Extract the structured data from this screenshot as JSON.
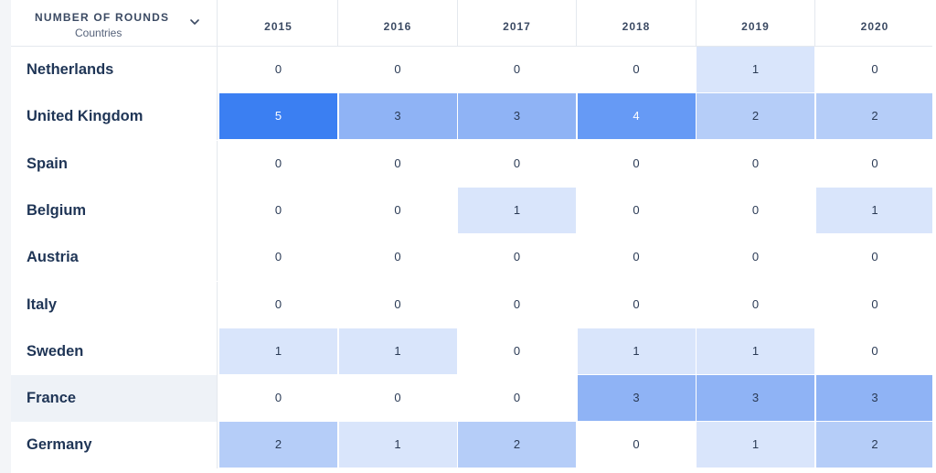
{
  "header": {
    "metric_label": "NUMBER OF ROUNDS",
    "dimension_label": "Countries",
    "dropdown_icon": "chevron-down-icon"
  },
  "colors": {
    "level_0": "#ffffff",
    "level_1": "#d9e5fb",
    "level_2": "#b5cdf8",
    "level_3": "#8fb3f5",
    "level_4": "#669af5",
    "level_5": "#3b7ff2",
    "highlight_row": "#eef2f7"
  },
  "chart_data": {
    "type": "heatmap",
    "title": "NUMBER OF ROUNDS",
    "xlabel": "",
    "ylabel": "Countries",
    "columns": [
      "2015",
      "2016",
      "2017",
      "2018",
      "2019",
      "2020"
    ],
    "rows": [
      {
        "name": "Netherlands",
        "values": [
          0,
          0,
          0,
          0,
          1,
          0
        ]
      },
      {
        "name": "United Kingdom",
        "values": [
          5,
          3,
          3,
          4,
          2,
          2
        ]
      },
      {
        "name": "Spain",
        "values": [
          0,
          0,
          0,
          0,
          0,
          0
        ]
      },
      {
        "name": "Belgium",
        "values": [
          0,
          0,
          1,
          0,
          0,
          1
        ]
      },
      {
        "name": "Austria",
        "values": [
          0,
          0,
          0,
          0,
          0,
          0
        ]
      },
      {
        "name": "Italy",
        "values": [
          0,
          0,
          0,
          0,
          0,
          0
        ]
      },
      {
        "name": "Sweden",
        "values": [
          1,
          1,
          0,
          1,
          1,
          0
        ]
      },
      {
        "name": "France",
        "values": [
          0,
          0,
          0,
          3,
          3,
          3
        ],
        "highlighted": true
      },
      {
        "name": "Germany",
        "values": [
          2,
          1,
          2,
          0,
          1,
          2
        ]
      }
    ],
    "value_range": [
      0,
      5
    ]
  }
}
